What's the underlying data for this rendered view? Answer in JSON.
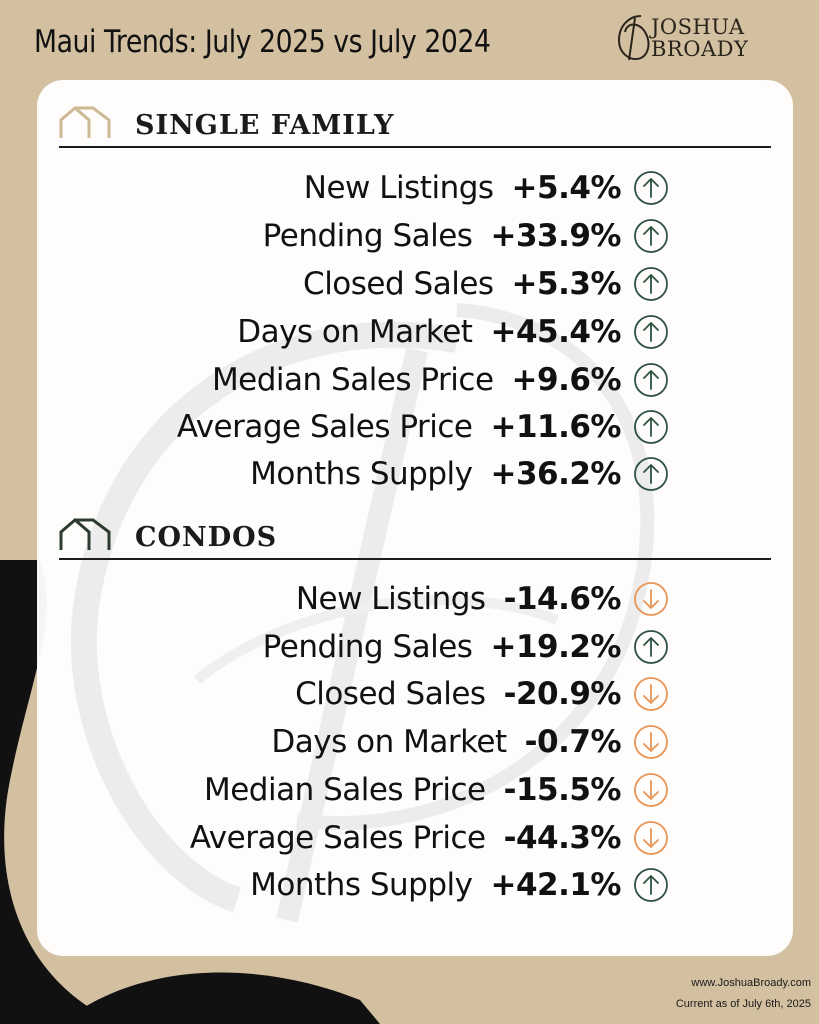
{
  "header": {
    "title": "Maui Trends: July 2025 vs July 2024",
    "brand_first": "JOSHUA",
    "brand_last": "BROADY",
    "brand_mark": "JB"
  },
  "colors": {
    "background": "#d3c0a1",
    "card": "#ffffff",
    "up_arrow": "#2f5245",
    "down_arrow": "#e8955a",
    "single_family_icon": "#cdb993",
    "condo_icon": "#2d3b30"
  },
  "sections": [
    {
      "title": "SINGLE FAMILY",
      "icon": "house-outline-icon",
      "rows": [
        {
          "metric": "New Listings",
          "change": "+5.4%",
          "direction": "up"
        },
        {
          "metric": "Pending Sales",
          "change": "+33.9%",
          "direction": "up"
        },
        {
          "metric": "Closed Sales",
          "change": "+5.3%",
          "direction": "up"
        },
        {
          "metric": "Days on Market",
          "change": "+45.4%",
          "direction": "up"
        },
        {
          "metric": "Median Sales Price",
          "change": "+9.6%",
          "direction": "up"
        },
        {
          "metric": "Average Sales Price",
          "change": "+11.6%",
          "direction": "up"
        },
        {
          "metric": "Months Supply",
          "change": "+36.2%",
          "direction": "up"
        }
      ]
    },
    {
      "title": "CONDOS",
      "icon": "condo-outline-icon",
      "rows": [
        {
          "metric": "New Listings",
          "change": "-14.6%",
          "direction": "down"
        },
        {
          "metric": "Pending Sales",
          "change": "+19.2%",
          "direction": "up"
        },
        {
          "metric": "Closed Sales",
          "change": "-20.9%",
          "direction": "down"
        },
        {
          "metric": "Days on Market",
          "change": "-0.7%",
          "direction": "down"
        },
        {
          "metric": "Median Sales Price",
          "change": "-15.5%",
          "direction": "down"
        },
        {
          "metric": "Average Sales Price",
          "change": "-44.3%",
          "direction": "down"
        },
        {
          "metric": "Months Supply",
          "change": "+42.1%",
          "direction": "up"
        }
      ]
    }
  ],
  "footer": {
    "url": "www.JoshuaBroady.com",
    "date": "Current as of July 6th, 2025"
  }
}
